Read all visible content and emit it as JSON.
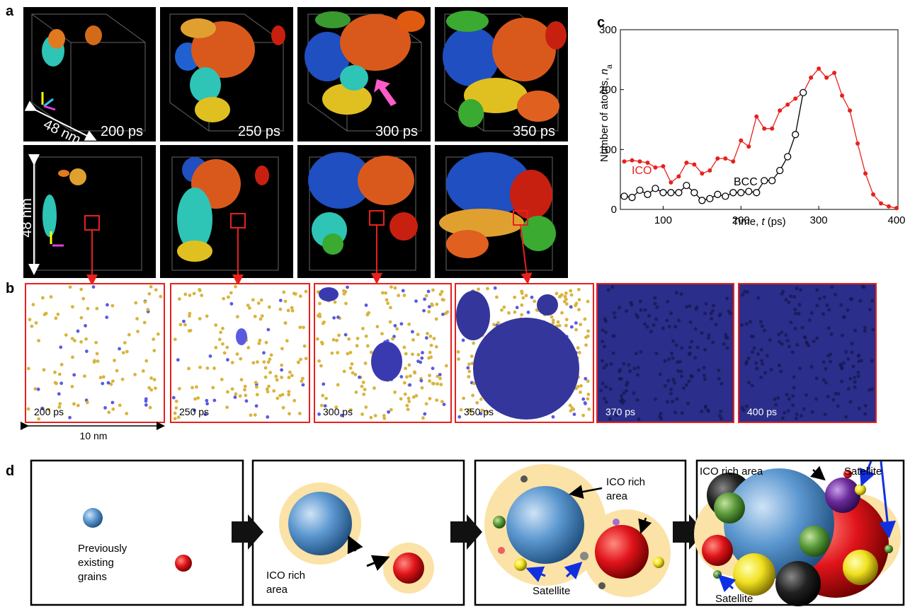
{
  "panel_a": {
    "label": "a",
    "times": [
      "200 ps",
      "250 ps",
      "300 ps",
      "350 ps"
    ],
    "scale_diag": "48 nm",
    "scale_side": "48 nm"
  },
  "panel_b": {
    "label": "b",
    "times": [
      "200 ps",
      "250 ps",
      "300 ps",
      "350 ps",
      "370 ps",
      "400 ps"
    ],
    "scale": "10 nm"
  },
  "chart_data": {
    "type": "line",
    "panel_label": "c",
    "xlabel": {
      "text": "Time, ",
      "var": "t",
      "unit": " (ps)"
    },
    "ylabel": {
      "text": "Number of atoms, ",
      "var": "n",
      "sub": "a"
    },
    "x": [
      50,
      60,
      70,
      80,
      90,
      100,
      110,
      120,
      130,
      140,
      150,
      160,
      170,
      180,
      190,
      200,
      210,
      220,
      230,
      240,
      250,
      260,
      270,
      280,
      290,
      300,
      310,
      320,
      330,
      340,
      350,
      360,
      370,
      380,
      390,
      400
    ],
    "series": [
      {
        "name": "ICO",
        "color": "#e8201c",
        "marker": "dot",
        "values": [
          80,
          82,
          80,
          78,
          70,
          72,
          45,
          55,
          78,
          75,
          60,
          65,
          85,
          85,
          80,
          115,
          105,
          155,
          135,
          135,
          165,
          175,
          185,
          195,
          220,
          235,
          220,
          228,
          190,
          165,
          110,
          60,
          25,
          10,
          5,
          2
        ]
      },
      {
        "name": "BCC",
        "color": "#000000",
        "marker": "open-circle",
        "values": [
          22,
          20,
          32,
          25,
          35,
          28,
          28,
          28,
          40,
          28,
          15,
          18,
          25,
          22,
          28,
          28,
          30,
          28,
          48,
          48,
          65,
          88,
          125,
          195,
          null,
          null,
          null,
          null,
          null,
          null,
          null,
          null,
          null,
          null,
          null,
          null
        ]
      }
    ],
    "xlim": [
      45,
      400
    ],
    "xticks": [
      100,
      200,
      300,
      400
    ],
    "ylim": [
      0,
      300
    ],
    "yticks": [
      0,
      100,
      200,
      300
    ],
    "grid": false
  },
  "panel_d": {
    "label": "d",
    "box1": [
      "Previously",
      "existing",
      "grains"
    ],
    "box2": [
      "ICO rich",
      "area"
    ],
    "box3": {
      "ico": [
        "ICO rich",
        "area"
      ],
      "satellite": "Satellite"
    },
    "box4": {
      "ico": "ICO rich area",
      "satellite_top": "Satellite",
      "satellite_bottom": "Satellite"
    }
  }
}
